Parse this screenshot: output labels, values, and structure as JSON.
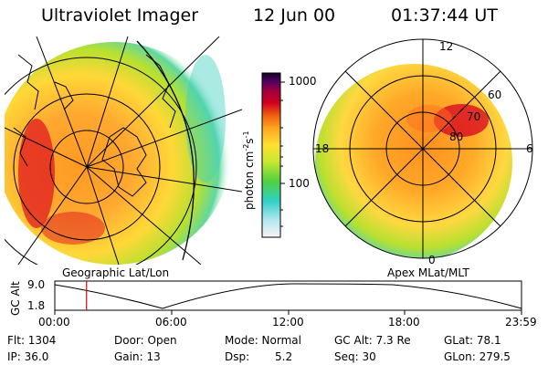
{
  "header": {
    "title": "Ultraviolet Imager",
    "date": "12 Jun 00",
    "time": "01:37:44 UT"
  },
  "colorbar": {
    "label_text": "photon cm",
    "label_exp1": "-2",
    "label_s": "s",
    "label_exp2": "-1",
    "ticks": [
      "1000",
      "100"
    ]
  },
  "left_panel": {
    "caption": "Geographic Lat/Lon"
  },
  "right_panel": {
    "caption": "Apex MLat/MLT",
    "mlt_labels": [
      "12",
      "18",
      "6",
      "0"
    ],
    "mlat_labels": [
      "60",
      "70",
      "80"
    ]
  },
  "altitude_plot": {
    "ylabel": "GC Alt",
    "yticks": [
      "9.0",
      "1.8"
    ],
    "xticks": [
      "00:00",
      "06:00",
      "12:00",
      "18:00",
      "23:59"
    ],
    "current_time_fraction": 0.068
  },
  "stats": {
    "flt": "Flt: 1304",
    "ip": "IP: 36.0",
    "door": "Door: Open",
    "gain": "Gain: 13",
    "mode": "Mode: Normal",
    "dsp": "Dsp:",
    "dsp_val": "5.2",
    "gcalt": "GC Alt: 7.3 Re",
    "seq": "Seq: 30",
    "glat": "GLat:  78.1",
    "glon": "GLon: 279.5"
  },
  "colors": {
    "marker": "#e00000",
    "aurora_hot": "#d4001e",
    "aurora_warm": "#ffa020",
    "aurora_mid": "#ffe040",
    "aurora_low": "#a0e030",
    "aurora_edge": "#40d0c0"
  }
}
